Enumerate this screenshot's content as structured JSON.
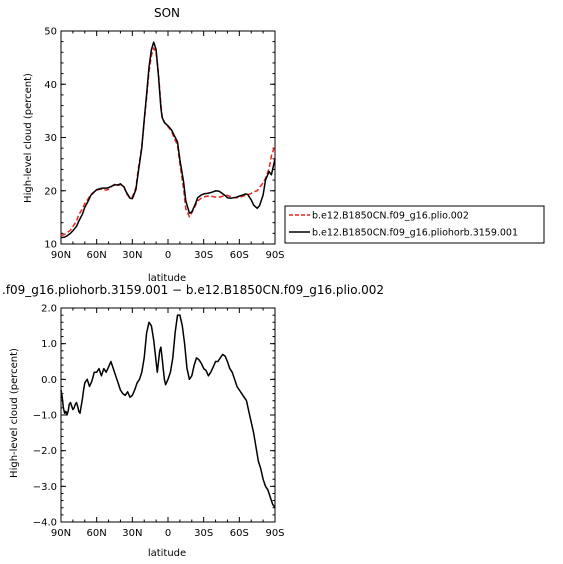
{
  "chart_data": [
    {
      "type": "line",
      "title": "SON",
      "xlabel": "latitude",
      "ylabel": "High-level cloud (percent)",
      "ylim": [
        10,
        50
      ],
      "xlim": [
        90,
        -90
      ],
      "x_axis_reversed": true,
      "x_ticks": [
        90,
        60,
        30,
        0,
        -30,
        -60,
        -90
      ],
      "x_tick_labels": [
        "90N",
        "60N",
        "30N",
        "0",
        "30S",
        "60S",
        "90S"
      ],
      "y_ticks": [
        10,
        20,
        30,
        40,
        50
      ],
      "y_tick_labels": [
        "10",
        "20",
        "30",
        "40",
        "50"
      ],
      "legend_position": "outside-right",
      "series": [
        {
          "name": "b.e12.B1850CN.f09_g16.plio.002",
          "color": "#e8251f",
          "dash": "dashed",
          "x": [
            90,
            87,
            85,
            82,
            80,
            77,
            75,
            72,
            70,
            67,
            65,
            62,
            60,
            57,
            55,
            52,
            50,
            47,
            45,
            42,
            40,
            37,
            35,
            32,
            30,
            27,
            25,
            22,
            20,
            18,
            16,
            14,
            12,
            10,
            8,
            6,
            5,
            3,
            0,
            -3,
            -5,
            -8,
            -10,
            -13,
            -15,
            -18,
            -20,
            -23,
            -25,
            -28,
            -30,
            -33,
            -35,
            -38,
            -40,
            -43,
            -45,
            -48,
            -50,
            -53,
            -55,
            -58,
            -60,
            -63,
            -65,
            -67,
            -70,
            -72,
            -75,
            -77,
            -80,
            -82,
            -85,
            -87,
            -90
          ],
          "y": [
            11.6,
            11.8,
            12.1,
            12.6,
            13.3,
            14.3,
            15.5,
            16.6,
            17.6,
            18.5,
            19.3,
            19.8,
            20.1,
            20.3,
            20.3,
            20.1,
            20.3,
            20.9,
            21.2,
            21.0,
            21.2,
            20.8,
            19.5,
            18.6,
            18.8,
            20.6,
            24.1,
            28.3,
            33.0,
            37.4,
            42.4,
            45.4,
            46.8,
            46.0,
            42.0,
            36.2,
            34.0,
            32.9,
            32.0,
            31.2,
            30.0,
            28.6,
            25.0,
            20.5,
            16.6,
            15.1,
            15.9,
            17.2,
            18.1,
            18.6,
            18.8,
            19.0,
            19.0,
            18.9,
            18.8,
            18.8,
            18.9,
            19.1,
            19.1,
            18.9,
            18.7,
            18.7,
            18.8,
            19.0,
            19.1,
            19.2,
            19.5,
            19.8,
            20.0,
            20.6,
            21.5,
            22.3,
            24.2,
            26.5,
            28.6
          ]
        },
        {
          "name": "b.e12.B1850CN.f09_g16.pliohorb.3159.001",
          "color": "#000000",
          "dash": "solid",
          "x": [
            90,
            87,
            85,
            82,
            80,
            77,
            75,
            72,
            70,
            67,
            65,
            62,
            60,
            57,
            55,
            52,
            50,
            47,
            45,
            42,
            40,
            37,
            35,
            32,
            30,
            27,
            25,
            22,
            20,
            18,
            16,
            14,
            12,
            10,
            8,
            6,
            5,
            3,
            0,
            -3,
            -5,
            -8,
            -10,
            -13,
            -15,
            -18,
            -20,
            -23,
            -25,
            -28,
            -30,
            -33,
            -35,
            -38,
            -40,
            -43,
            -45,
            -48,
            -50,
            -53,
            -55,
            -58,
            -60,
            -63,
            -65,
            -67,
            -70,
            -72,
            -75,
            -77,
            -80,
            -82,
            -85,
            -87,
            -90
          ],
          "y": [
            11.2,
            11.3,
            11.5,
            12.0,
            12.5,
            13.3,
            14.3,
            15.6,
            16.9,
            18.1,
            19.1,
            19.8,
            20.2,
            20.4,
            20.5,
            20.5,
            20.6,
            20.9,
            21.1,
            21.1,
            21.3,
            20.7,
            19.7,
            18.6,
            18.5,
            20.2,
            23.5,
            28.1,
            33.3,
            38.1,
            43.2,
            46.5,
            47.9,
            46.5,
            41.5,
            35.5,
            33.8,
            32.8,
            32.2,
            31.4,
            30.5,
            29.2,
            25.8,
            21.8,
            18.1,
            15.8,
            16.0,
            17.5,
            18.7,
            19.2,
            19.4,
            19.5,
            19.6,
            19.8,
            20.0,
            19.9,
            19.6,
            19.1,
            18.7,
            18.6,
            18.7,
            18.8,
            19.0,
            19.2,
            19.4,
            19.3,
            18.3,
            17.3,
            16.7,
            17.2,
            19.2,
            22.0,
            23.6,
            23.0,
            26.0
          ]
        }
      ]
    },
    {
      "type": "line",
      "title": ".f09_g16.pliohorb.3159.001 − b.e12.B1850CN.f09_g16.plio.002",
      "xlabel": "latitude",
      "ylabel": "High-level cloud (percent)",
      "ylim": [
        -4.0,
        2.0
      ],
      "xlim": [
        90,
        -90
      ],
      "x_axis_reversed": true,
      "x_ticks": [
        90,
        60,
        30,
        0,
        -30,
        -60,
        -90
      ],
      "x_tick_labels": [
        "90N",
        "60N",
        "30N",
        "0",
        "30S",
        "60S",
        "90S"
      ],
      "y_ticks": [
        2.0,
        1.0,
        0.0,
        -1.0,
        -2.0,
        -3.0,
        -4.0
      ],
      "y_tick_labels": [
        "2.0",
        "1.0",
        "0.0",
        "−1.0",
        "−2.0",
        "−3.0",
        "−4.0"
      ],
      "series": [
        {
          "color": "#000000",
          "dash": "solid",
          "x": [
            90,
            89,
            88,
            87,
            86,
            85,
            84,
            83,
            82,
            81,
            80,
            79,
            78,
            77,
            76,
            75,
            74,
            73,
            72,
            71,
            70,
            68,
            66,
            64,
            62,
            60,
            58,
            56,
            54,
            52,
            50,
            48,
            46,
            44,
            42,
            40,
            38,
            36,
            34,
            32,
            30,
            28,
            26,
            24,
            22,
            20,
            18,
            16,
            14,
            12,
            10,
            9,
            8,
            7,
            6,
            5,
            4,
            3,
            2,
            0,
            -2,
            -4,
            -6,
            -8,
            -10,
            -12,
            -14,
            -16,
            -18,
            -20,
            -22,
            -24,
            -26,
            -28,
            -30,
            -32,
            -34,
            -36,
            -38,
            -40,
            -42,
            -44,
            -46,
            -48,
            -50,
            -52,
            -54,
            -56,
            -58,
            -60,
            -62,
            -64,
            -66,
            -68,
            -70,
            -72,
            -74,
            -76,
            -78,
            -80,
            -82,
            -84,
            -86,
            -88,
            -90
          ],
          "y": [
            -0.3,
            -0.5,
            -0.8,
            -0.95,
            -0.9,
            -1.0,
            -0.9,
            -0.7,
            -0.65,
            -0.75,
            -0.85,
            -0.8,
            -0.7,
            -0.65,
            -0.75,
            -0.9,
            -0.95,
            -0.75,
            -0.55,
            -0.3,
            -0.1,
            0.0,
            -0.2,
            -0.05,
            0.2,
            0.2,
            0.3,
            0.1,
            0.3,
            0.2,
            0.35,
            0.5,
            0.3,
            0.1,
            -0.1,
            -0.3,
            -0.4,
            -0.45,
            -0.35,
            -0.5,
            -0.45,
            -0.3,
            -0.1,
            0.0,
            0.2,
            0.6,
            1.3,
            1.6,
            1.5,
            1.1,
            0.5,
            0.2,
            0.5,
            0.8,
            0.9,
            0.6,
            0.3,
            0.0,
            -0.15,
            0.0,
            0.2,
            0.6,
            1.3,
            1.8,
            1.8,
            1.5,
            1.0,
            0.3,
            0.0,
            0.1,
            0.4,
            0.6,
            0.55,
            0.45,
            0.3,
            0.25,
            0.1,
            0.2,
            0.35,
            0.5,
            0.5,
            0.6,
            0.7,
            0.65,
            0.5,
            0.3,
            0.2,
            0.0,
            -0.2,
            -0.3,
            -0.4,
            -0.5,
            -0.6,
            -0.9,
            -1.2,
            -1.5,
            -1.9,
            -2.3,
            -2.5,
            -2.8,
            -3.0,
            -3.1,
            -3.3,
            -3.5,
            -3.6
          ]
        }
      ]
    }
  ]
}
